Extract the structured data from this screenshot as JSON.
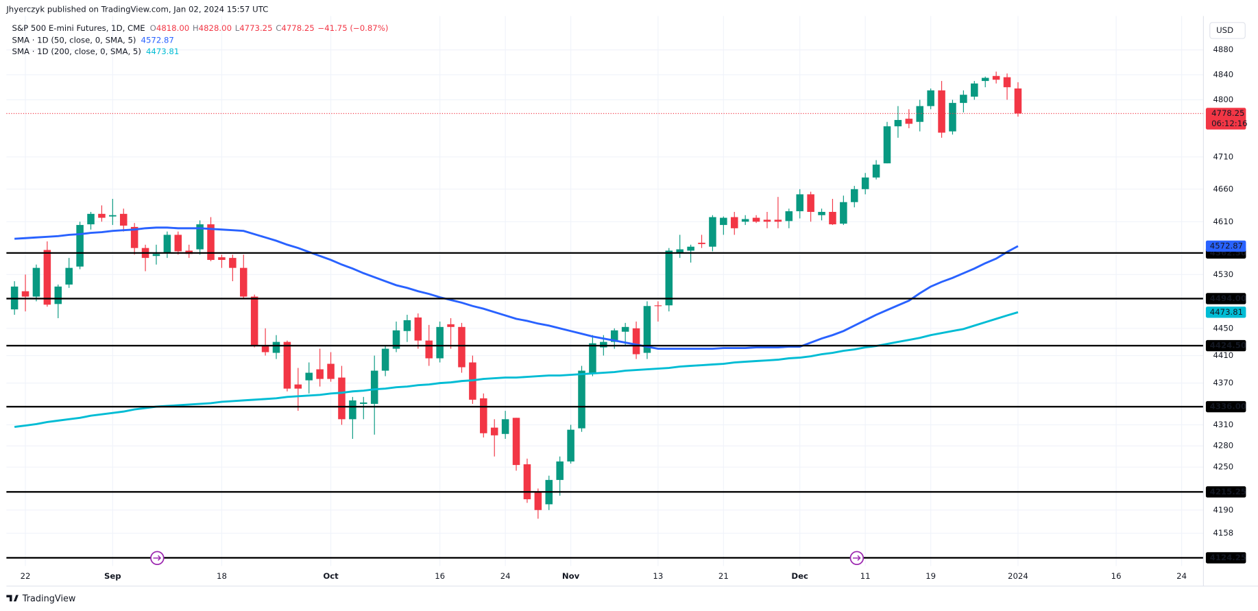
{
  "header": {
    "published": "Jhyerczyk published on TradingView.com, Jan 02, 2024 15:57 UTC",
    "ohlc": [
      {
        "label": "O",
        "value": "4818.00"
      },
      {
        "label": "H",
        "value": "4828.00"
      },
      {
        "label": "L",
        "value": "4773.25"
      },
      {
        "label": "C",
        "value": "4778.25"
      }
    ],
    "change": "−41.75 (−0.87%)",
    "currency": "USD",
    "brand": "TradingView",
    "countdown": "06:12:16"
  },
  "chart_data": {
    "type": "candlestick",
    "title": "S&P 500 E-mini Futures, 1D, CME",
    "up_color": "#089981",
    "down_color": "#f23645",
    "log_scale": true,
    "grid": true,
    "open": [
      4478,
      4505,
      4497,
      4567,
      4486,
      4515,
      4542,
      4606,
      4622,
      4618,
      4622,
      4602,
      4570,
      4558,
      4562,
      4590,
      4566,
      4568,
      4606,
      4556,
      4555,
      4540,
      4497,
      4424,
      4414,
      4430,
      4368,
      4374,
      4390,
      4398,
      4378,
      4318,
      4340,
      4340,
      4388,
      4420,
      4446,
      4466,
      4432,
      4406,
      4456,
      4452,
      4400,
      4348,
      4306,
      4297,
      4320,
      4254,
      4215,
      4198,
      4232,
      4258,
      4305,
      4384,
      4422,
      4430,
      4445,
      4450,
      4414,
      4484,
      4484,
      4562,
      4566,
      4578,
      4572,
      4605,
      4617,
      4610,
      4616,
      4613,
      4613,
      4611,
      4626,
      4652,
      4620,
      4625,
      4607,
      4640,
      4660,
      4678,
      4700,
      4758,
      4770,
      4765,
      4790,
      4815,
      4750,
      4795,
      4805,
      4830,
      4838,
      4836,
      4818
    ],
    "high": [
      4520,
      4530,
      4545,
      4580,
      4515,
      4555,
      4610,
      4625,
      4635,
      4645,
      4630,
      4608,
      4575,
      4575,
      4595,
      4595,
      4575,
      4612,
      4617,
      4560,
      4560,
      4560,
      4500,
      4450,
      4440,
      4432,
      4392,
      4400,
      4420,
      4415,
      4395,
      4350,
      4350,
      4410,
      4425,
      4460,
      4470,
      4472,
      4455,
      4460,
      4465,
      4458,
      4410,
      4355,
      4318,
      4330,
      4320,
      4262,
      4220,
      4238,
      4265,
      4310,
      4395,
      4440,
      4440,
      4450,
      4458,
      4460,
      4490,
      4490,
      4570,
      4590,
      4575,
      4590,
      4620,
      4618,
      4625,
      4620,
      4620,
      4625,
      4648,
      4630,
      4660,
      4656,
      4630,
      4645,
      4650,
      4665,
      4685,
      4705,
      4765,
      4790,
      4785,
      4800,
      4818,
      4830,
      4800,
      4815,
      4830,
      4837,
      4845,
      4842,
      4828
    ],
    "low": [
      4470,
      4475,
      4490,
      4482,
      4465,
      4510,
      4538,
      4598,
      4610,
      4605,
      4595,
      4560,
      4535,
      4545,
      4555,
      4560,
      4555,
      4560,
      4550,
      4540,
      4520,
      4495,
      4422,
      4410,
      4405,
      4358,
      4330,
      4355,
      4365,
      4372,
      4310,
      4290,
      4318,
      4296,
      4380,
      4415,
      4430,
      4420,
      4395,
      4400,
      4420,
      4385,
      4340,
      4292,
      4265,
      4290,
      4245,
      4200,
      4178,
      4190,
      4210,
      4255,
      4300,
      4380,
      4410,
      4420,
      4425,
      4405,
      4405,
      4460,
      4475,
      4555,
      4548,
      4570,
      4565,
      4590,
      4590,
      4605,
      4608,
      4600,
      4600,
      4600,
      4615,
      4610,
      4612,
      4605,
      4605,
      4632,
      4652,
      4675,
      4700,
      4740,
      4755,
      4750,
      4785,
      4740,
      4745,
      4780,
      4800,
      4820,
      4826,
      4800,
      4773.25
    ],
    "close": [
      4512,
      4497,
      4540,
      4485,
      4512,
      4540,
      4605,
      4622,
      4616,
      4620,
      4604,
      4570,
      4555,
      4561,
      4590,
      4565,
      4561,
      4606,
      4552,
      4552,
      4540,
      4497,
      4424,
      4415,
      4430,
      4362,
      4362,
      4385,
      4376,
      4376,
      4318,
      4345,
      4342,
      4388,
      4420,
      4447,
      4462,
      4432,
      4406,
      4452,
      4452,
      4393,
      4346,
      4298,
      4295,
      4318,
      4253,
      4205,
      4190,
      4232,
      4258,
      4303,
      4388,
      4428,
      4430,
      4447,
      4452,
      4412,
      4483,
      4483,
      4566,
      4568,
      4572,
      4576,
      4617,
      4616,
      4600,
      4614,
      4610,
      4610,
      4610,
      4626,
      4652,
      4625,
      4625,
      4606,
      4640,
      4660,
      4678,
      4698,
      4758,
      4768,
      4762,
      4790,
      4815,
      4748,
      4795,
      4808,
      4826,
      4835,
      4832,
      4820,
      4778.25
    ],
    "series": [
      {
        "name": "SMA · 1D (50, close, 0, SMA, 5)",
        "color": "#2962ff",
        "values": [
          4584,
          4585,
          4586,
          4587,
          4588,
          4590,
          4591,
          4593,
          4594,
          4596,
          4597,
          4598,
          4600,
          4601,
          4601,
          4600,
          4600,
          4600,
          4599,
          4598,
          4597,
          4596,
          4591,
          4586,
          4581,
          4575,
          4570,
          4564,
          4558,
          4552,
          4545,
          4539,
          4532,
          4526,
          4520,
          4514,
          4510,
          4505,
          4501,
          4496,
          4492,
          4488,
          4483,
          4479,
          4474,
          4469,
          4464,
          4461,
          4457,
          4454,
          4450,
          4446,
          4442,
          4438,
          4435,
          4432,
          4429,
          4426,
          4423,
          4420,
          4420,
          4420,
          4420,
          4420,
          4420,
          4421,
          4421,
          4421,
          4422,
          4422,
          4422,
          4423,
          4423,
          4429,
          4435,
          4440,
          4446,
          4454,
          4462,
          4470,
          4477,
          4484,
          4491,
          4502,
          4512,
          4519,
          4525,
          4532,
          4539,
          4547,
          4554,
          4564,
          4572.87
        ]
      },
      {
        "name": "SMA · 1D (200, close, 0, SMA, 5)",
        "color": "#00bcd4",
        "values": [
          4307,
          4309,
          4311,
          4314,
          4316,
          4318,
          4320,
          4323,
          4325,
          4327,
          4329,
          4332,
          4334,
          4336,
          4337,
          4338,
          4339,
          4340,
          4341,
          4343,
          4344,
          4345,
          4346,
          4347,
          4348,
          4350,
          4351,
          4352,
          4353,
          4355,
          4356,
          4358,
          4359,
          4361,
          4362,
          4364,
          4365,
          4367,
          4368,
          4370,
          4371,
          4373,
          4374,
          4376,
          4377,
          4378,
          4378,
          4379,
          4380,
          4381,
          4381,
          4382,
          4383,
          4384,
          4385,
          4386,
          4388,
          4389,
          4390,
          4391,
          4392,
          4394,
          4395,
          4396,
          4397,
          4398,
          4400,
          4401,
          4402,
          4403,
          4404,
          4406,
          4407,
          4409,
          4412,
          4414,
          4417,
          4419,
          4422,
          4424,
          4427,
          4430,
          4433,
          4436,
          4440,
          4443,
          4446,
          4449,
          4454,
          4459,
          4464,
          4469,
          4473.81
        ]
      }
    ],
    "levels": [
      {
        "value": 4562.5,
        "label": "4562.50"
      },
      {
        "value": 4494,
        "label": "4494.00"
      },
      {
        "value": 4424.5,
        "label": "4424.50"
      },
      {
        "value": 4336,
        "label": "4336.00"
      },
      {
        "value": 4215.25,
        "label": "4215.25"
      },
      {
        "value": 4124.25,
        "label": "4124.25"
      }
    ],
    "level_color": "#000000",
    "xlim": [
      -0.74,
      109
    ],
    "xticks": [
      {
        "value": 1,
        "label": "22"
      },
      {
        "value": 9,
        "label": "Sep"
      },
      {
        "value": 19,
        "label": "18"
      },
      {
        "value": 29,
        "label": "Oct"
      },
      {
        "value": 39,
        "label": "16"
      },
      {
        "value": 45,
        "label": "24"
      },
      {
        "value": 51,
        "label": "Nov"
      },
      {
        "value": 59,
        "label": "13"
      },
      {
        "value": 65,
        "label": "21"
      },
      {
        "value": 72,
        "label": "Dec"
      },
      {
        "value": 78,
        "label": "11"
      },
      {
        "value": 84,
        "label": "19"
      },
      {
        "value": 92,
        "label": "2024"
      },
      {
        "value": 101,
        "label": "16"
      },
      {
        "value": 107,
        "label": "24"
      }
    ],
    "ylim": [
      4113,
      4935
    ],
    "yticks": [
      4880,
      4840,
      4800,
      4710,
      4660,
      4610,
      4530,
      4450,
      4410,
      4370,
      4310,
      4280,
      4250,
      4190,
      4158
    ]
  }
}
